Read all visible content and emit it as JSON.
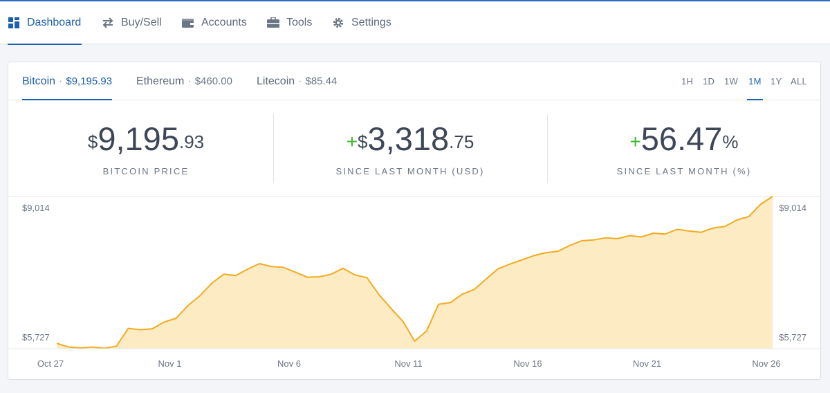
{
  "nav": {
    "items": [
      {
        "label": "Dashboard",
        "icon": "dashboard-icon",
        "active": true
      },
      {
        "label": "Buy/Sell",
        "icon": "swap-arrows-icon",
        "active": false
      },
      {
        "label": "Accounts",
        "icon": "wallet-icon",
        "active": false
      },
      {
        "label": "Tools",
        "icon": "briefcase-icon",
        "active": false
      },
      {
        "label": "Settings",
        "icon": "gear-icon",
        "active": false
      }
    ]
  },
  "coins": [
    {
      "name": "Bitcoin",
      "price": "$9,195.93",
      "active": true
    },
    {
      "name": "Ethereum",
      "price": "$460.00",
      "active": false
    },
    {
      "name": "Litecoin",
      "price": "$85.44",
      "active": false
    }
  ],
  "separator": "·",
  "ranges": [
    {
      "label": "1H",
      "active": false
    },
    {
      "label": "1D",
      "active": false
    },
    {
      "label": "1W",
      "active": false
    },
    {
      "label": "1M",
      "active": true
    },
    {
      "label": "1Y",
      "active": false
    },
    {
      "label": "ALL",
      "active": false
    }
  ],
  "stats": {
    "price": {
      "prefix": "$",
      "main": "9,195",
      "fraction": ".93",
      "label": "BITCOIN PRICE"
    },
    "change_usd": {
      "sign": "+",
      "prefix": "$",
      "main": "3,318",
      "fraction": ".75",
      "label": "SINCE LAST MONTH (USD)"
    },
    "change_pct": {
      "sign": "+",
      "main": "56.47",
      "suffix": "%",
      "label": "SINCE LAST MONTH (%)"
    }
  },
  "colors": {
    "accent": "#1d5fb0",
    "positive": "#3fb834",
    "line": "#f2ab1f",
    "fill": "#fdebc4"
  },
  "chart_data": {
    "type": "area",
    "y_labels": {
      "high": "$9,014",
      "low": "$5,727"
    },
    "x_tick_labels": [
      "Oct 27",
      "Nov 1",
      "Nov 6",
      "Nov 11",
      "Nov 16",
      "Nov 21",
      "Nov 26"
    ],
    "x_tick_day_index": [
      0,
      5,
      10,
      15,
      20,
      25,
      30
    ],
    "ylim": [
      5600,
      9195.93
    ],
    "series": [
      {
        "day_index": [
          0,
          0.5,
          1,
          1.5,
          2,
          2.5,
          3,
          3.5,
          4,
          4.5,
          5,
          5.5,
          6,
          6.5,
          7,
          7.5,
          8,
          8.5,
          9,
          9.5,
          10,
          10.5,
          11,
          11.5,
          12,
          12.5,
          13,
          13.5,
          14,
          14.5,
          15,
          15.5,
          16,
          16.5,
          17,
          17.5,
          18,
          18.5,
          19,
          19.5,
          20,
          20.5,
          21,
          21.5,
          22,
          22.5,
          23,
          23.5,
          24,
          24.5,
          25,
          25.5,
          26,
          26.5,
          27,
          27.5,
          28,
          28.5,
          29,
          29.5,
          30,
          30.5,
          31
        ],
        "values": [
          5727,
          5640,
          5620,
          5640,
          5610,
          5660,
          6080,
          6050,
          6070,
          6230,
          6320,
          6620,
          6850,
          7150,
          7360,
          7330,
          7480,
          7610,
          7540,
          7520,
          7410,
          7290,
          7300,
          7360,
          7500,
          7340,
          7280,
          6880,
          6560,
          6250,
          5780,
          6020,
          6650,
          6690,
          6890,
          7000,
          7250,
          7490,
          7600,
          7700,
          7800,
          7870,
          7900,
          8040,
          8150,
          8170,
          8220,
          8200,
          8270,
          8240,
          8330,
          8310,
          8420,
          8380,
          8350,
          8450,
          8490,
          8640,
          8720,
          9014,
          9195.93,
          9195.93,
          9195.93
        ]
      }
    ]
  }
}
